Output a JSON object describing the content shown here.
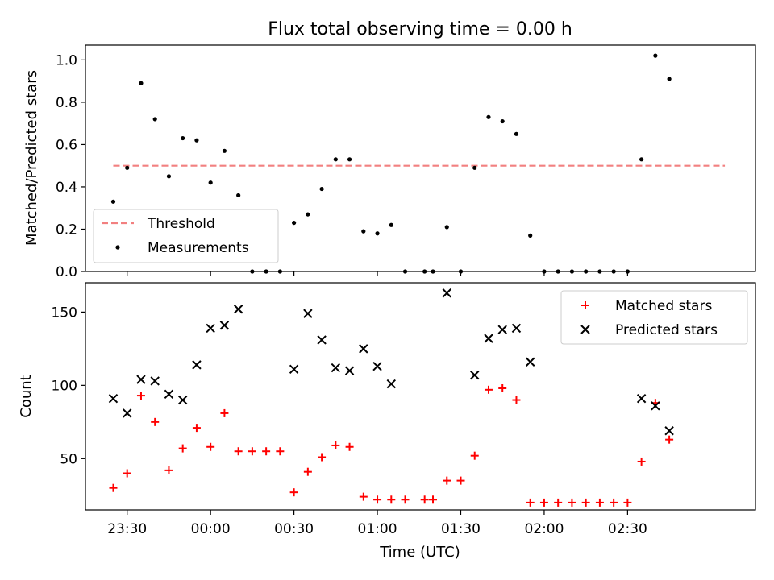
{
  "title": "Flux total observing time = 0.00 h",
  "chart_data": [
    {
      "type": "scatter",
      "ylabel": "Matched/Predicted stars",
      "ylim": [
        0,
        1.07
      ],
      "yticks": [
        "0.0",
        "0.2",
        "0.4",
        "0.6",
        "0.8",
        "1.0"
      ],
      "threshold": {
        "name": "Threshold",
        "value": 0.5,
        "x_range": [
          "23:25",
          "03:05"
        ],
        "color": "#f28080"
      },
      "legend_position": "lower-left",
      "series": [
        {
          "name": "Measurements",
          "color": "#000000",
          "points": [
            [
              "23:25",
              0.33
            ],
            [
              "23:30",
              0.49
            ],
            [
              "23:35",
              0.89
            ],
            [
              "23:40",
              0.72
            ],
            [
              "23:45",
              0.45
            ],
            [
              "23:50",
              0.63
            ],
            [
              "23:55",
              0.62
            ],
            [
              "00:00",
              0.42
            ],
            [
              "00:05",
              0.57
            ],
            [
              "00:10",
              0.36
            ],
            [
              "00:15",
              0.0
            ],
            [
              "00:20",
              0.0
            ],
            [
              "00:25",
              0.0
            ],
            [
              "00:30",
              0.23
            ],
            [
              "00:35",
              0.27
            ],
            [
              "00:40",
              0.39
            ],
            [
              "00:45",
              0.53
            ],
            [
              "00:50",
              0.53
            ],
            [
              "00:55",
              0.19
            ],
            [
              "01:00",
              0.18
            ],
            [
              "01:05",
              0.22
            ],
            [
              "01:10",
              0.0
            ],
            [
              "01:17",
              0.0
            ],
            [
              "01:20",
              0.0
            ],
            [
              "01:25",
              0.21
            ],
            [
              "01:30",
              0.0
            ],
            [
              "01:35",
              0.49
            ],
            [
              "01:40",
              0.73
            ],
            [
              "01:45",
              0.71
            ],
            [
              "01:50",
              0.65
            ],
            [
              "01:55",
              0.17
            ],
            [
              "02:00",
              0.0
            ],
            [
              "02:05",
              0.0
            ],
            [
              "02:10",
              0.0
            ],
            [
              "02:15",
              0.0
            ],
            [
              "02:20",
              0.0
            ],
            [
              "02:25",
              0.0
            ],
            [
              "02:30",
              0.0
            ],
            [
              "02:35",
              0.53
            ],
            [
              "02:40",
              1.02
            ],
            [
              "02:45",
              0.91
            ]
          ]
        }
      ]
    },
    {
      "type": "scatter",
      "xlabel": "Time (UTC)",
      "ylabel": "Count",
      "ylim": [
        15,
        170
      ],
      "yticks": [
        "50",
        "100",
        "150"
      ],
      "xticks": [
        "23:30",
        "00:00",
        "00:30",
        "01:00",
        "01:30",
        "02:00",
        "02:30"
      ],
      "legend_position": "upper-right",
      "series": [
        {
          "name": "Matched stars",
          "marker": "+",
          "color": "#ff0000",
          "points": [
            [
              "23:25",
              30
            ],
            [
              "23:30",
              40
            ],
            [
              "23:35",
              93
            ],
            [
              "23:40",
              75
            ],
            [
              "23:45",
              42
            ],
            [
              "23:50",
              57
            ],
            [
              "23:55",
              71
            ],
            [
              "00:00",
              58
            ],
            [
              "00:05",
              81
            ],
            [
              "00:10",
              55
            ],
            [
              "00:15",
              55
            ],
            [
              "00:20",
              55
            ],
            [
              "00:25",
              55
            ],
            [
              "00:30",
              27
            ],
            [
              "00:35",
              41
            ],
            [
              "00:40",
              51
            ],
            [
              "00:45",
              59
            ],
            [
              "00:50",
              58
            ],
            [
              "00:55",
              24
            ],
            [
              "01:00",
              22
            ],
            [
              "01:05",
              22
            ],
            [
              "01:10",
              22
            ],
            [
              "01:17",
              22
            ],
            [
              "01:20",
              22
            ],
            [
              "01:25",
              35
            ],
            [
              "01:30",
              35
            ],
            [
              "01:35",
              52
            ],
            [
              "01:40",
              97
            ],
            [
              "01:45",
              98
            ],
            [
              "01:50",
              90
            ],
            [
              "01:55",
              20
            ],
            [
              "02:00",
              20
            ],
            [
              "02:05",
              20
            ],
            [
              "02:10",
              20
            ],
            [
              "02:15",
              20
            ],
            [
              "02:20",
              20
            ],
            [
              "02:25",
              20
            ],
            [
              "02:30",
              20
            ],
            [
              "02:35",
              48
            ],
            [
              "02:40",
              88
            ],
            [
              "02:45",
              63
            ]
          ]
        },
        {
          "name": "Predicted stars",
          "marker": "x",
          "color": "#000000",
          "points": [
            [
              "23:25",
              91
            ],
            [
              "23:30",
              81
            ],
            [
              "23:35",
              104
            ],
            [
              "23:40",
              103
            ],
            [
              "23:45",
              94
            ],
            [
              "23:50",
              90
            ],
            [
              "23:55",
              114
            ],
            [
              "00:00",
              139
            ],
            [
              "00:05",
              141
            ],
            [
              "00:10",
              152
            ],
            [
              "00:30",
              111
            ],
            [
              "00:35",
              149
            ],
            [
              "00:40",
              131
            ],
            [
              "00:45",
              112
            ],
            [
              "00:50",
              110
            ],
            [
              "00:55",
              125
            ],
            [
              "01:00",
              113
            ],
            [
              "01:05",
              101
            ],
            [
              "01:25",
              163
            ],
            [
              "01:35",
              107
            ],
            [
              "01:40",
              132
            ],
            [
              "01:45",
              138
            ],
            [
              "01:50",
              139
            ],
            [
              "01:55",
              116
            ],
            [
              "02:35",
              91
            ],
            [
              "02:40",
              86
            ],
            [
              "02:45",
              69
            ]
          ]
        }
      ]
    }
  ]
}
